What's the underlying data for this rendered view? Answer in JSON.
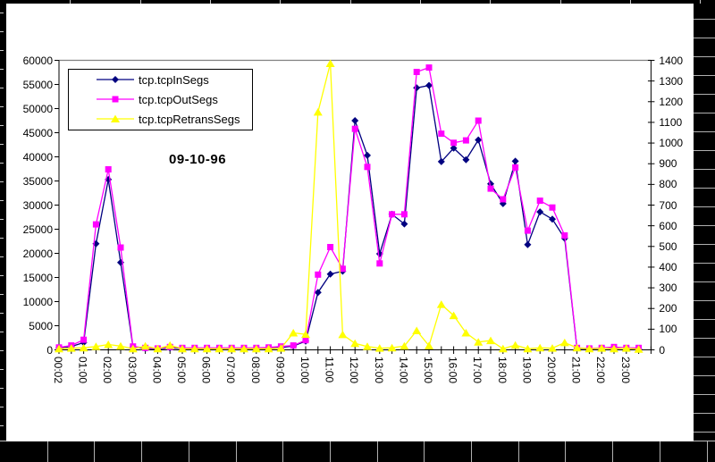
{
  "colors": {
    "background": "#000000",
    "panel": "#FFFFFF",
    "gridline": "#808080",
    "axis": "#000000",
    "in_segs": "#000080",
    "out_segs": "#FF00FF",
    "retrans_segs": "#FFFF00"
  },
  "chart_data": {
    "type": "line",
    "date_label": "09-10-96",
    "legend_position": "top-left",
    "grid": "top gridline only at left-axis max",
    "x": [
      "00:02",
      "00:30",
      "01:00",
      "01:30",
      "02:00",
      "02:30",
      "03:00",
      "03:30",
      "04:00",
      "04:30",
      "05:00",
      "05:30",
      "06:00",
      "06:30",
      "07:00",
      "07:30",
      "08:00",
      "08:30",
      "09:00",
      "09:30",
      "10:00",
      "10:30",
      "11:00",
      "11:30",
      "12:00",
      "12:30",
      "13:00",
      "13:30",
      "14:00",
      "14:30",
      "15:00",
      "15:30",
      "16:00",
      "16:30",
      "17:00",
      "17:30",
      "18:00",
      "18:30",
      "19:00",
      "19:30",
      "20:00",
      "20:30",
      "21:00",
      "21:30",
      "22:00",
      "22:30",
      "23:00",
      "23:30"
    ],
    "x_tick_labels": [
      "00:02",
      "01:00",
      "02:00",
      "03:00",
      "04:00",
      "05:00",
      "06:00",
      "07:00",
      "08:00",
      "09:00",
      "10:00",
      "11:00",
      "12:00",
      "13:00",
      "14:00",
      "15:00",
      "16:00",
      "17:00",
      "18:00",
      "19:00",
      "20:00",
      "21:00",
      "22:00",
      "23:00"
    ],
    "left_axis": {
      "min": 0,
      "max": 60000,
      "step": 5000,
      "tick_labels": [
        "0",
        "5000",
        "10000",
        "15000",
        "20000",
        "25000",
        "30000",
        "35000",
        "40000",
        "45000",
        "50000",
        "55000",
        "60000"
      ]
    },
    "right_axis": {
      "min": 0,
      "max": 1400,
      "step": 100,
      "tick_labels": [
        "0",
        "100",
        "200",
        "300",
        "400",
        "500",
        "600",
        "700",
        "800",
        "900",
        "1000",
        "1100",
        "1200",
        "1300",
        "1400"
      ]
    },
    "series": [
      {
        "name": "tcp.tcpInSegs",
        "axis": "left",
        "color": "#000080",
        "marker": "diamond",
        "values": [
          400,
          700,
          1500,
          22000,
          35300,
          18100,
          600,
          300,
          200,
          400,
          300,
          300,
          300,
          300,
          300,
          300,
          300,
          400,
          500,
          800,
          1800,
          11900,
          15700,
          16300,
          47500,
          40300,
          19900,
          28100,
          26100,
          54300,
          54800,
          39000,
          41800,
          39400,
          43500,
          34400,
          30300,
          39100,
          21800,
          28600,
          27100,
          23100,
          300,
          200,
          300,
          400,
          300,
          200
        ]
      },
      {
        "name": "tcp.tcpOutSegs",
        "axis": "left",
        "color": "#FF00FF",
        "marker": "square",
        "values": [
          500,
          900,
          2100,
          26000,
          37400,
          21200,
          700,
          400,
          300,
          600,
          400,
          400,
          400,
          400,
          400,
          400,
          400,
          500,
          700,
          900,
          2000,
          15600,
          21300,
          16800,
          45800,
          37900,
          17900,
          28100,
          28100,
          57600,
          58500,
          44800,
          42900,
          43400,
          47500,
          33400,
          31200,
          37800,
          24700,
          30900,
          29500,
          23700,
          400,
          300,
          400,
          600,
          400,
          400
        ]
      },
      {
        "name": "tcp.tcpRetransSegs",
        "axis": "right",
        "color": "#FFFF00",
        "marker": "triangle",
        "values": [
          5,
          8,
          10,
          16,
          26,
          18,
          5,
          18,
          5,
          22,
          5,
          5,
          5,
          5,
          5,
          5,
          5,
          5,
          8,
          82,
          75,
          1150,
          1385,
          74,
          31,
          16,
          8,
          10,
          18,
          93,
          20,
          220,
          166,
          82,
          38,
          45,
          5,
          23,
          5,
          10,
          8,
          35,
          10,
          5,
          8,
          5,
          8,
          3
        ]
      }
    ]
  }
}
